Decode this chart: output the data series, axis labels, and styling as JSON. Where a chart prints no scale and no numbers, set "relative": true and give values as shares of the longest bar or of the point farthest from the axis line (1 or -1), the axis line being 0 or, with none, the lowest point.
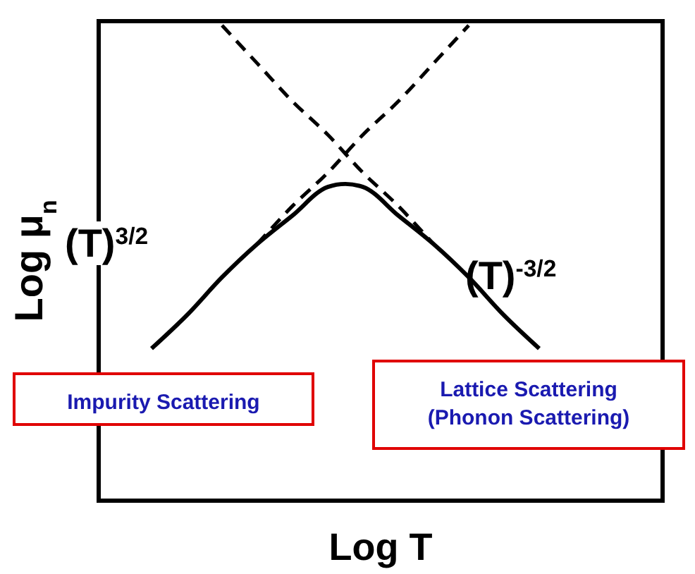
{
  "chart_data": {
    "type": "line",
    "relative": true,
    "xlabel": "Log T",
    "ylabel": "Log μ$_{n}$",
    "categories": [
      null,
      null,
      null,
      null,
      null,
      null,
      null,
      null,
      null,
      null,
      null,
      null,
      null,
      null,
      null,
      null
    ],
    "series": [
      {
        "color": "#000000",
        "line_style": "solid",
        "values": [
          null,
          0.32,
          0.39,
          0.47,
          0.54,
          0.6,
          0.66,
          0.66,
          0.6,
          0.54,
          0.47,
          0.39,
          0.32,
          null,
          null,
          null
        ]
      },
      {
        "color": "#000000",
        "line_style": "dashed",
        "values": [
          null,
          null,
          null,
          null,
          0.54,
          0.62,
          0.69,
          0.77,
          0.84,
          0.92,
          1.0,
          null,
          null,
          null,
          null,
          null
        ]
      },
      {
        "color": "#000000",
        "line_style": "dashed",
        "values": [
          null,
          null,
          null,
          1.0,
          0.92,
          0.84,
          0.77,
          0.69,
          0.62,
          0.54,
          null,
          null,
          null,
          null,
          null,
          null
        ]
      }
    ],
    "annotations": [
      "(T)$^{3/2}$",
      "(T)$^{-3/2}$",
      "Impurity Scattering",
      "Lattice Scattering (Phonon Scattering)"
    ]
  }
}
